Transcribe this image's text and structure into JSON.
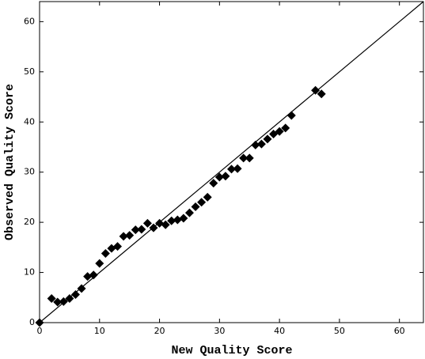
{
  "chart_data": {
    "type": "scatter",
    "x_label": "New Quality Score",
    "y_label": "Observed Quality Score",
    "points": {
      "color": "#000000",
      "x": [
        0,
        2,
        3,
        4,
        5,
        6,
        7,
        8,
        9,
        10,
        11,
        12,
        13,
        14,
        15,
        16,
        17,
        18,
        19,
        20,
        21,
        22,
        23,
        24,
        25,
        26,
        27,
        28,
        29,
        30,
        31,
        32,
        33,
        34,
        35,
        36,
        37,
        38,
        39,
        40,
        41,
        42,
        46,
        47
      ],
      "y": [
        0,
        4.8,
        4.1,
        4.2,
        4.8,
        5.6,
        6.8,
        9.2,
        9.5,
        11.8,
        13.8,
        14.8,
        15.2,
        17.2,
        17.4,
        18.5,
        18.6,
        19.8,
        18.9,
        19.8,
        19.5,
        20.3,
        20.5,
        20.8,
        21.9,
        23.1,
        24,
        25,
        27.8,
        29,
        29.2,
        30.6,
        30.7,
        32.8,
        32.8,
        35.4,
        35.6,
        36.6,
        37.6,
        38.1,
        38.8,
        41.3,
        46.3,
        45.6
      ]
    },
    "reference_line": {
      "x": [
        0,
        64
      ],
      "y": [
        0,
        64
      ],
      "color": "#000000"
    },
    "xlim": [
      0,
      64
    ],
    "ylim": [
      0,
      64
    ],
    "xticks": [
      0,
      10,
      20,
      30,
      40,
      50,
      60
    ],
    "yticks": [
      0,
      10,
      20,
      30,
      40,
      50,
      60
    ],
    "grid": false
  }
}
